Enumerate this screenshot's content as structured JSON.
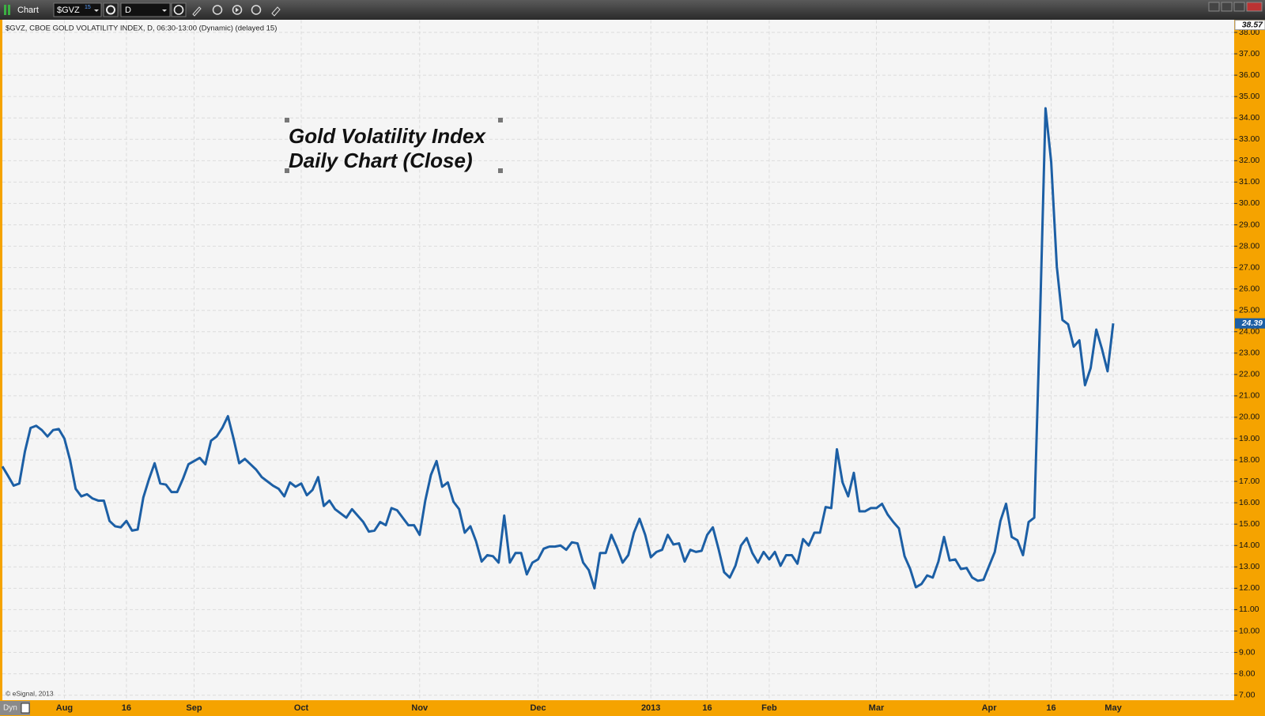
{
  "toolbar": {
    "title": "Chart",
    "symbol": "$GVZ",
    "symbol_badge": "15",
    "interval": "D"
  },
  "chart_data": {
    "type": "line",
    "subtitle": "$GVZ, CBOE GOLD VOLATILITY INDEX, D, 06:30-13:00 (Dynamic) (delayed 15)",
    "annotation": [
      "Gold Volatility Index",
      "Daily Chart (Close)"
    ],
    "copyright": "© eSignal, 2013",
    "mode_label": "Dyn",
    "color": "#1c5fa5",
    "grid": true,
    "ylim": [
      6.75,
      38.57
    ],
    "yticks": [
      {
        "value": 7,
        "label": "7.00"
      },
      {
        "value": 8,
        "label": "8.00"
      },
      {
        "value": 9,
        "label": "9.00"
      },
      {
        "value": 10,
        "label": "10.00"
      },
      {
        "value": 11,
        "label": "11.00"
      },
      {
        "value": 12,
        "label": "12.00"
      },
      {
        "value": 13,
        "label": "13.00"
      },
      {
        "value": 14,
        "label": "14.00"
      },
      {
        "value": 15,
        "label": "15.00"
      },
      {
        "value": 16,
        "label": "16.00"
      },
      {
        "value": 17,
        "label": "17.00"
      },
      {
        "value": 18,
        "label": "18.00"
      },
      {
        "value": 19,
        "label": "19.00"
      },
      {
        "value": 20,
        "label": "20.00"
      },
      {
        "value": 21,
        "label": "21.00"
      },
      {
        "value": 22,
        "label": "22.00"
      },
      {
        "value": 23,
        "label": "23.00"
      },
      {
        "value": 24,
        "label": "24.00"
      },
      {
        "value": 25,
        "label": "25.00"
      },
      {
        "value": 26,
        "label": "26.00"
      },
      {
        "value": 27,
        "label": "27.00"
      },
      {
        "value": 28,
        "label": "28.00"
      },
      {
        "value": 29,
        "label": "29.00"
      },
      {
        "value": 30,
        "label": "30.00"
      },
      {
        "value": 31,
        "label": "31.00"
      },
      {
        "value": 32,
        "label": "32.00"
      },
      {
        "value": 33,
        "label": "33.00"
      },
      {
        "value": 34,
        "label": "34.00"
      },
      {
        "value": 35,
        "label": "35.00"
      },
      {
        "value": 36,
        "label": "36.00"
      },
      {
        "value": 37,
        "label": "37.00"
      },
      {
        "value": 38,
        "label": "38.00"
      }
    ],
    "categories": [
      null,
      null,
      null,
      null,
      null,
      null,
      null,
      null,
      null,
      null,
      null,
      "Aug",
      null,
      null,
      null,
      null,
      null,
      null,
      null,
      null,
      null,
      null,
      "16",
      null,
      null,
      null,
      null,
      null,
      null,
      null,
      null,
      null,
      null,
      null,
      "Sep",
      null,
      null,
      null,
      null,
      null,
      null,
      null,
      null,
      null,
      null,
      null,
      null,
      null,
      null,
      null,
      null,
      null,
      null,
      "Oct",
      null,
      null,
      null,
      null,
      null,
      null,
      null,
      null,
      null,
      null,
      null,
      null,
      null,
      null,
      null,
      null,
      null,
      null,
      null,
      null,
      "Nov",
      null,
      null,
      null,
      null,
      null,
      null,
      null,
      null,
      null,
      null,
      null,
      null,
      null,
      null,
      null,
      null,
      null,
      null,
      null,
      null,
      "Dec",
      null,
      null,
      null,
      null,
      null,
      null,
      null,
      null,
      null,
      null,
      null,
      null,
      null,
      null,
      null,
      null,
      null,
      null,
      null,
      "2013",
      null,
      null,
      null,
      null,
      null,
      null,
      null,
      null,
      null,
      "16",
      null,
      null,
      null,
      null,
      null,
      null,
      null,
      null,
      null,
      null,
      "Feb",
      null,
      null,
      null,
      null,
      null,
      null,
      null,
      null,
      null,
      null,
      null,
      null,
      null,
      null,
      null,
      null,
      null,
      null,
      "Mar",
      null,
      null,
      null,
      null,
      null,
      null,
      null,
      null,
      null,
      null,
      null,
      null,
      null,
      null,
      null,
      null,
      null,
      null,
      null,
      "Apr",
      null,
      null,
      null,
      null,
      null,
      null,
      null,
      null,
      null,
      null,
      "16",
      null,
      null,
      null,
      null,
      null,
      null,
      null,
      null,
      null,
      null,
      "May"
    ],
    "values": [
      17.7,
      17.26,
      16.8,
      16.9,
      18.4,
      19.5,
      19.6,
      19.4,
      19.1,
      19.4,
      19.45,
      19.0,
      18.0,
      16.65,
      16.3,
      16.4,
      16.2,
      16.1,
      16.1,
      15.15,
      14.9,
      14.85,
      15.15,
      14.7,
      14.75,
      16.25,
      17.1,
      17.85,
      16.9,
      16.85,
      16.5,
      16.5,
      17.1,
      17.8,
      17.95,
      18.1,
      17.8,
      18.9,
      19.1,
      19.5,
      20.05,
      19.0,
      17.85,
      18.05,
      17.8,
      17.55,
      17.2,
      17.0,
      16.8,
      16.65,
      16.3,
      16.95,
      16.75,
      16.9,
      16.35,
      16.6,
      17.2,
      15.85,
      16.1,
      15.7,
      15.5,
      15.3,
      15.7,
      15.4,
      15.1,
      14.65,
      14.7,
      15.1,
      14.95,
      15.75,
      15.65,
      15.3,
      14.95,
      14.95,
      14.5,
      16.1,
      17.3,
      17.95,
      16.75,
      16.95,
      16.05,
      15.7,
      14.6,
      14.9,
      14.2,
      13.25,
      13.55,
      13.5,
      13.2,
      15.4,
      13.2,
      13.65,
      13.65,
      12.65,
      13.2,
      13.35,
      13.85,
      13.95,
      13.95,
      14.0,
      13.8,
      14.15,
      14.1,
      13.2,
      12.85,
      12.0,
      13.65,
      13.65,
      14.5,
      13.9,
      13.2,
      13.55,
      14.6,
      15.25,
      14.5,
      13.45,
      13.7,
      13.8,
      14.5,
      14.05,
      14.1,
      13.25,
      13.8,
      13.7,
      13.75,
      14.5,
      14.85,
      13.85,
      12.75,
      12.5,
      13.05,
      14.0,
      14.35,
      13.65,
      13.2,
      13.7,
      13.35,
      13.7,
      13.05,
      13.55,
      13.55,
      13.15,
      14.3,
      14.0,
      14.6,
      14.6,
      15.8,
      15.75,
      18.5,
      16.95,
      16.3,
      17.4,
      15.6,
      15.6,
      15.75,
      15.75,
      15.95,
      15.45,
      15.1,
      14.8,
      13.5,
      12.9,
      12.05,
      12.2,
      12.6,
      12.5,
      13.25,
      14.4,
      13.3,
      13.35,
      12.9,
      12.95,
      12.5,
      12.35,
      12.4,
      13.05,
      13.7,
      15.15,
      15.95,
      14.4,
      14.25,
      13.55,
      15.1,
      15.3,
      24.4,
      34.45,
      31.95,
      27.05,
      24.55,
      24.35,
      23.3,
      23.6,
      21.5,
      22.3,
      24.1,
      23.2,
      22.15,
      24.39
    ]
  }
}
